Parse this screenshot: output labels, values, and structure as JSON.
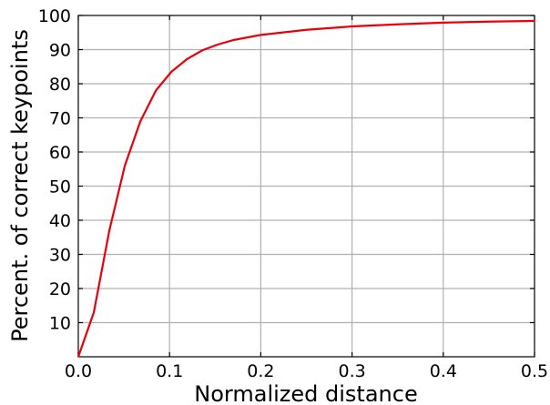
{
  "chart_data": {
    "type": "line",
    "title": "",
    "xlabel": "Normalized distance",
    "ylabel": "Percent. of correct keypoints",
    "xlim": [
      0,
      0.5
    ],
    "ylim": [
      0,
      100
    ],
    "x_ticks": [
      "0.0",
      "0.1",
      "0.2",
      "0.3",
      "0.4",
      "0.5"
    ],
    "y_ticks": [
      "10",
      "20",
      "30",
      "40",
      "50",
      "60",
      "70",
      "80",
      "90",
      "100"
    ],
    "grid": true,
    "legend": "none",
    "series": [
      {
        "color": "#e8000b",
        "x": [
          0,
          0.017,
          0.034,
          0.051,
          0.068,
          0.085,
          0.102,
          0.119,
          0.136,
          0.153,
          0.17,
          0.2,
          0.25,
          0.3,
          0.35,
          0.4,
          0.45,
          0.5
        ],
        "y": [
          0,
          13,
          37,
          56,
          69,
          78,
          83.5,
          87.2,
          89.8,
          91.5,
          92.8,
          94.3,
          95.8,
          96.8,
          97.4,
          97.9,
          98.2,
          98.4
        ]
      }
    ]
  }
}
